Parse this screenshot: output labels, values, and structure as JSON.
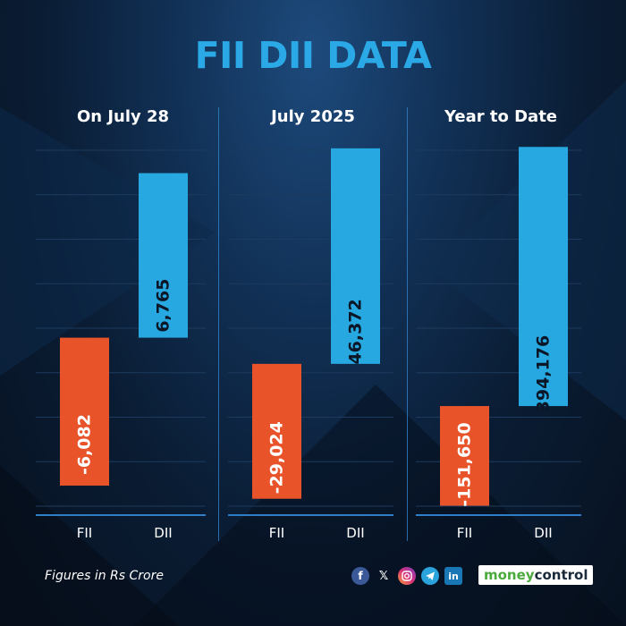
{
  "title": "FII DII DATA",
  "footnote": "Figures in Rs Crore",
  "colors": {
    "fii": "#e8532a",
    "dii": "#27a8e1",
    "axis": "#2f7dc4",
    "grid": "#1d3b5e",
    "title": "#2aa9e6"
  },
  "chart_data": [
    {
      "type": "bar",
      "title": "On July 28",
      "categories": [
        "FII",
        "DII"
      ],
      "values": [
        -6082,
        6765
      ],
      "value_labels": [
        "-6,082",
        "6,765"
      ],
      "ylim": [
        -7000,
        8000
      ]
    },
    {
      "type": "bar",
      "title": "July 2025",
      "categories": [
        "FII",
        "DII"
      ],
      "values": [
        -29024,
        46372
      ],
      "value_labels": [
        "-29,024",
        "46,372"
      ],
      "ylim": [
        -31000,
        47500
      ]
    },
    {
      "type": "bar",
      "title": "Year to Date",
      "categories": [
        "FII",
        "DII"
      ],
      "values": [
        -151650,
        394176
      ],
      "value_labels": [
        "-151,650",
        "394,176"
      ],
      "ylim": [
        -155000,
        400000
      ]
    }
  ],
  "social_icons": [
    "facebook-icon",
    "x-icon",
    "instagram-icon",
    "telegram-icon",
    "linkedin-icon"
  ],
  "brand": {
    "part1": "money",
    "part2": "control"
  }
}
